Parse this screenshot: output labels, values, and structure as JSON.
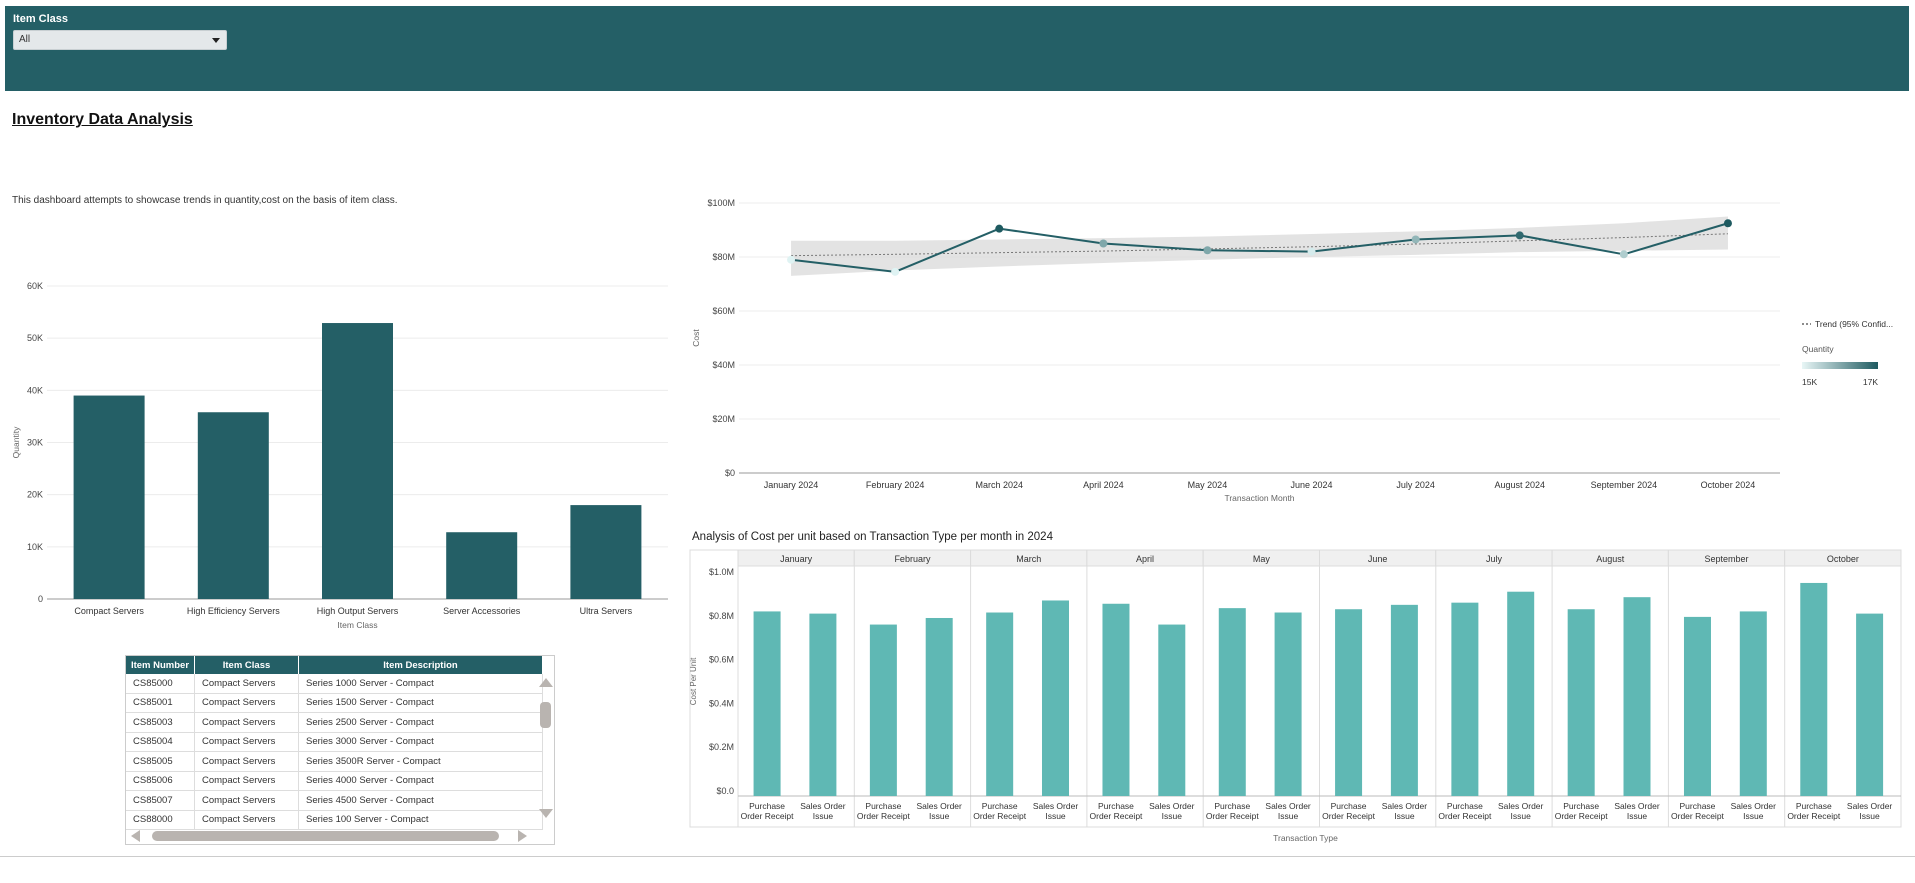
{
  "filter": {
    "label": "Item Class",
    "selected": "All"
  },
  "page": {
    "title": "Inventory Data Analysis",
    "description": "This dashboard attempts to showcase trends in quantity,cost on the basis of item class."
  },
  "colors": {
    "header": "#245f66",
    "bar_dark": "#245f66",
    "bar_light": "#5fb8b4"
  },
  "table": {
    "headers": [
      "Item Number",
      "Item Class",
      "Item Description"
    ],
    "rows": [
      [
        "CS85000",
        "Compact Servers",
        "Series 1000 Server - Compact"
      ],
      [
        "CS85001",
        "Compact Servers",
        "Series 1500 Server - Compact"
      ],
      [
        "CS85003",
        "Compact Servers",
        "Series 2500 Server - Compact"
      ],
      [
        "CS85004",
        "Compact Servers",
        "Series 3000 Server - Compact"
      ],
      [
        "CS85005",
        "Compact Servers",
        "Series 3500R Server - Compact"
      ],
      [
        "CS85006",
        "Compact Servers",
        "Series 4000 Server - Compact"
      ],
      [
        "CS85007",
        "Compact Servers",
        "Series 4500 Server - Compact"
      ],
      [
        "CS88000",
        "Compact Servers",
        "Series 100 Server - Compact"
      ]
    ]
  },
  "chart_data": [
    {
      "id": "quantity_by_class",
      "type": "bar",
      "title": "",
      "xlabel": "Item Class",
      "ylabel": "Quantity",
      "categories": [
        "Compact Servers",
        "High Efficiency Servers",
        "High Output Servers",
        "Server Accessories",
        "Ultra Servers"
      ],
      "values": [
        39000,
        35800,
        52900,
        12800,
        18000
      ],
      "yticks": [
        "0",
        "10K",
        "20K",
        "30K",
        "40K",
        "50K",
        "60K"
      ],
      "ylim": [
        0,
        60000
      ]
    },
    {
      "id": "cost_trend",
      "type": "line",
      "xlabel": "Transaction Month",
      "ylabel": "Cost",
      "categories": [
        "January 2024",
        "February 2024",
        "March 2024",
        "April 2024",
        "May 2024",
        "June 2024",
        "July 2024",
        "August 2024",
        "September 2024",
        "October 2024"
      ],
      "values": [
        79,
        74.5,
        90.5,
        85,
        82.5,
        82,
        86.5,
        88,
        81,
        92.5
      ],
      "quantity": [
        15000,
        15000,
        17000,
        16000,
        16000,
        15100,
        15800,
        16800,
        15500,
        17000
      ],
      "trend": [
        80.5,
        81,
        81.6,
        82.2,
        83,
        83.8,
        84.8,
        86,
        87.2,
        88.6
      ],
      "band_low": [
        73,
        75,
        76.5,
        77.8,
        79,
        80,
        80.8,
        81.8,
        82.3,
        82.8
      ],
      "band_high": [
        86,
        86,
        86.5,
        87,
        87.6,
        88.5,
        89.5,
        90.8,
        92.5,
        95
      ],
      "yticks": [
        "$0",
        "$20M",
        "$40M",
        "$60M",
        "$80M",
        "$100M"
      ],
      "ylim": [
        0,
        100
      ],
      "legend": {
        "trend": "Trend (95% Confid...",
        "color_title": "Quantity",
        "min": "15K",
        "max": "17K"
      }
    },
    {
      "id": "cost_per_unit",
      "type": "bar",
      "title": "Analysis of Cost per unit based on Transaction Type per month in 2024",
      "xlabel": "Transaction Type",
      "ylabel": "Cost Per Unit",
      "panels": [
        "January",
        "February",
        "March",
        "April",
        "May",
        "June",
        "July",
        "August",
        "September",
        "October"
      ],
      "categories": [
        "Purchase Order Receipt",
        "Sales Order Issue"
      ],
      "cat_lines": [
        [
          "Purchase",
          "Order Receipt"
        ],
        [
          "Sales Order",
          "Issue"
        ]
      ],
      "values": [
        [
          0.82,
          0.81
        ],
        [
          0.76,
          0.79
        ],
        [
          0.815,
          0.87
        ],
        [
          0.855,
          0.76
        ],
        [
          0.835,
          0.815
        ],
        [
          0.83,
          0.85
        ],
        [
          0.86,
          0.91
        ],
        [
          0.83,
          0.885
        ],
        [
          0.795,
          0.82
        ],
        [
          0.95,
          0.81
        ]
      ],
      "yticks": [
        "$0.0",
        "$0.2M",
        "$0.4M",
        "$0.6M",
        "$0.8M",
        "$1.0M"
      ],
      "ylim": [
        0,
        1.0
      ]
    }
  ]
}
